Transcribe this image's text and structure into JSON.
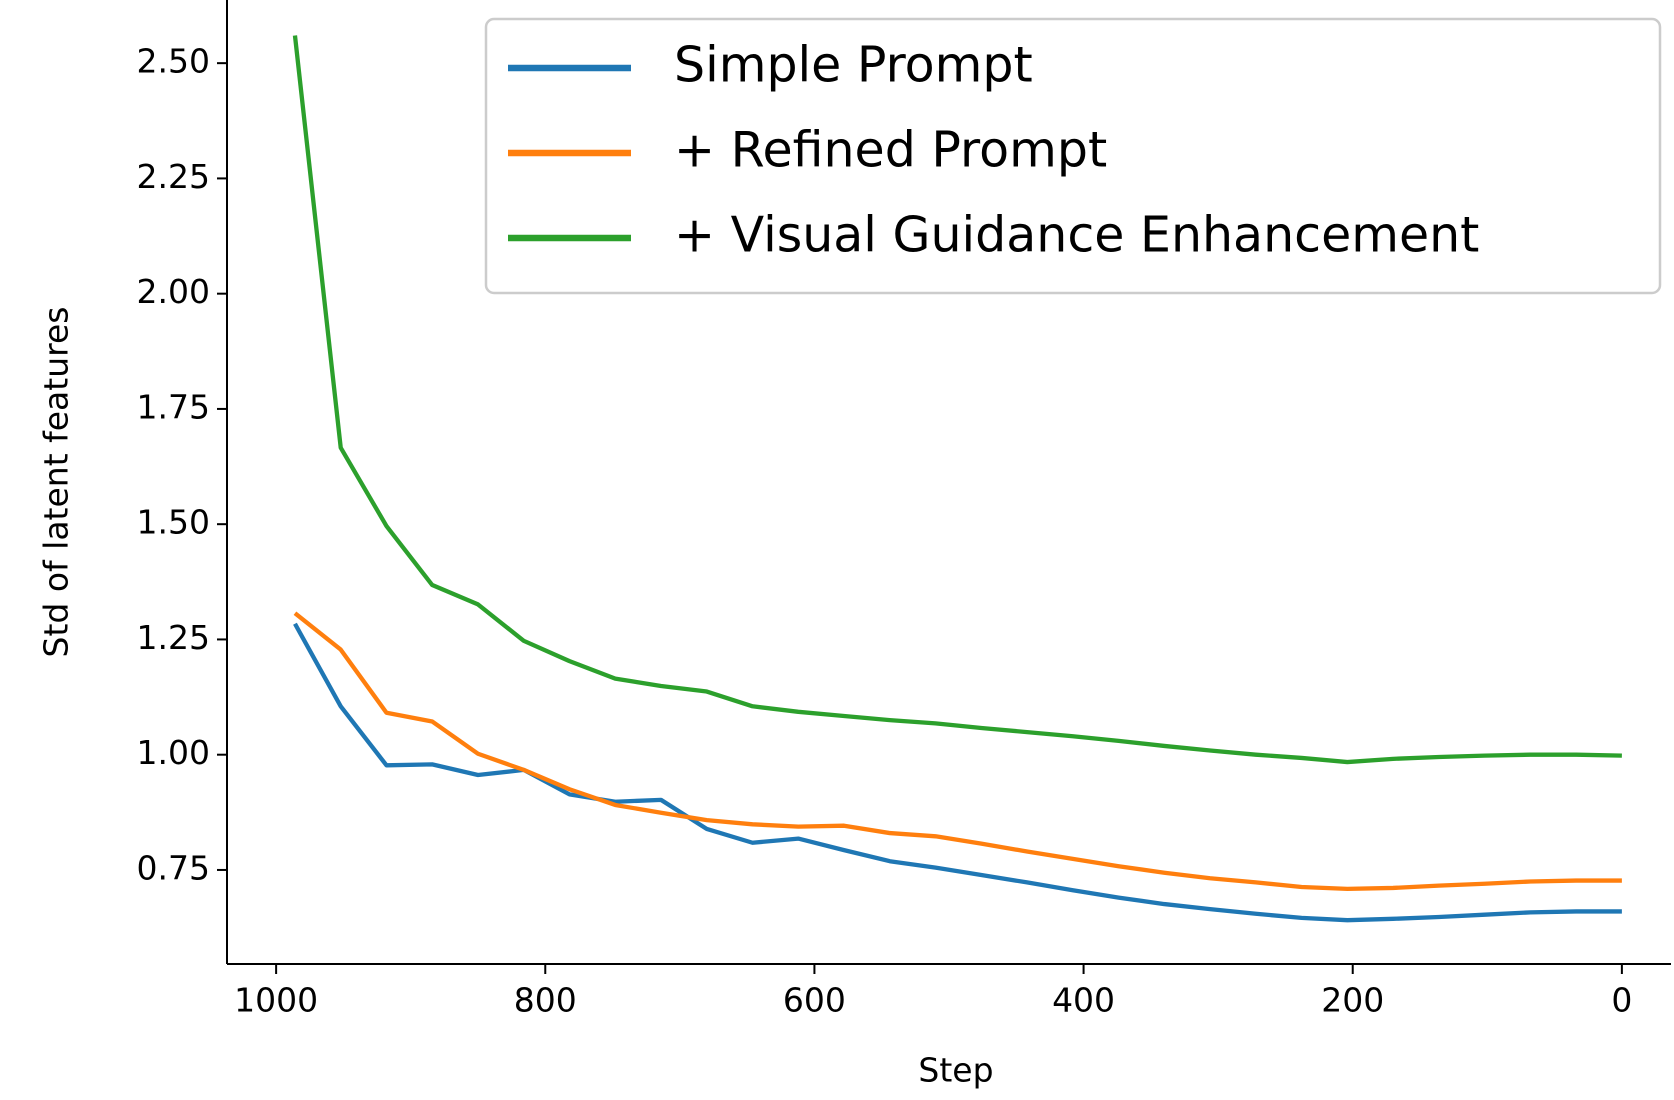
{
  "chart_data": {
    "type": "line",
    "xlabel": "Step",
    "ylabel": "Std of latent features",
    "x": [
      986,
      952,
      918,
      884,
      850,
      816,
      782,
      748,
      714,
      680,
      646,
      612,
      578,
      544,
      510,
      476,
      442,
      408,
      374,
      340,
      306,
      272,
      238,
      204,
      170,
      136,
      102,
      68,
      34,
      0
    ],
    "series": [
      {
        "name": "Simple Prompt",
        "color": "#1f77b4",
        "values": [
          1.284,
          1.105,
          0.977,
          0.979,
          0.956,
          0.967,
          0.914,
          0.898,
          0.902,
          0.839,
          0.809,
          0.818,
          0.793,
          0.769,
          0.755,
          0.739,
          0.723,
          0.706,
          0.69,
          0.676,
          0.665,
          0.655,
          0.646,
          0.641,
          0.644,
          0.648,
          0.653,
          0.658,
          0.66,
          0.66
        ]
      },
      {
        "name": "+ Refined Prompt",
        "color": "#ff7f0e",
        "values": [
          1.307,
          1.228,
          1.091,
          1.072,
          1.002,
          0.967,
          0.925,
          0.891,
          0.874,
          0.858,
          0.849,
          0.844,
          0.846,
          0.83,
          0.823,
          0.807,
          0.79,
          0.774,
          0.758,
          0.744,
          0.732,
          0.723,
          0.713,
          0.709,
          0.711,
          0.716,
          0.72,
          0.725,
          0.727,
          0.727
        ]
      },
      {
        "name": "+ Visual Guidance Enhancement",
        "color": "#2ca02c",
        "values": [
          2.56,
          1.666,
          1.496,
          1.368,
          1.326,
          1.247,
          1.203,
          1.165,
          1.149,
          1.137,
          1.105,
          1.093,
          1.084,
          1.075,
          1.068,
          1.058,
          1.049,
          1.04,
          1.03,
          1.019,
          1.009,
          1.0,
          0.993,
          0.984,
          0.991,
          0.995,
          0.998,
          1.0,
          1.0,
          0.998
        ]
      }
    ],
    "xlim": [
      1036.5,
      -36.5
    ],
    "xticks": [
      1000,
      800,
      600,
      400,
      200,
      0
    ],
    "ylim": [
      0.546,
      2.637
    ],
    "yticks": [
      {
        "value": 0.75,
        "label": "0.75"
      },
      {
        "value": 1.0,
        "label": "1.00"
      },
      1.25,
      {
        "value": 1.5,
        "label": "1.50"
      },
      1.75,
      {
        "value": 2.0,
        "label": "2.00"
      },
      2.25,
      {
        "value": 2.5,
        "label": "2.50"
      }
    ],
    "legend": "upper right",
    "grid": false
  }
}
